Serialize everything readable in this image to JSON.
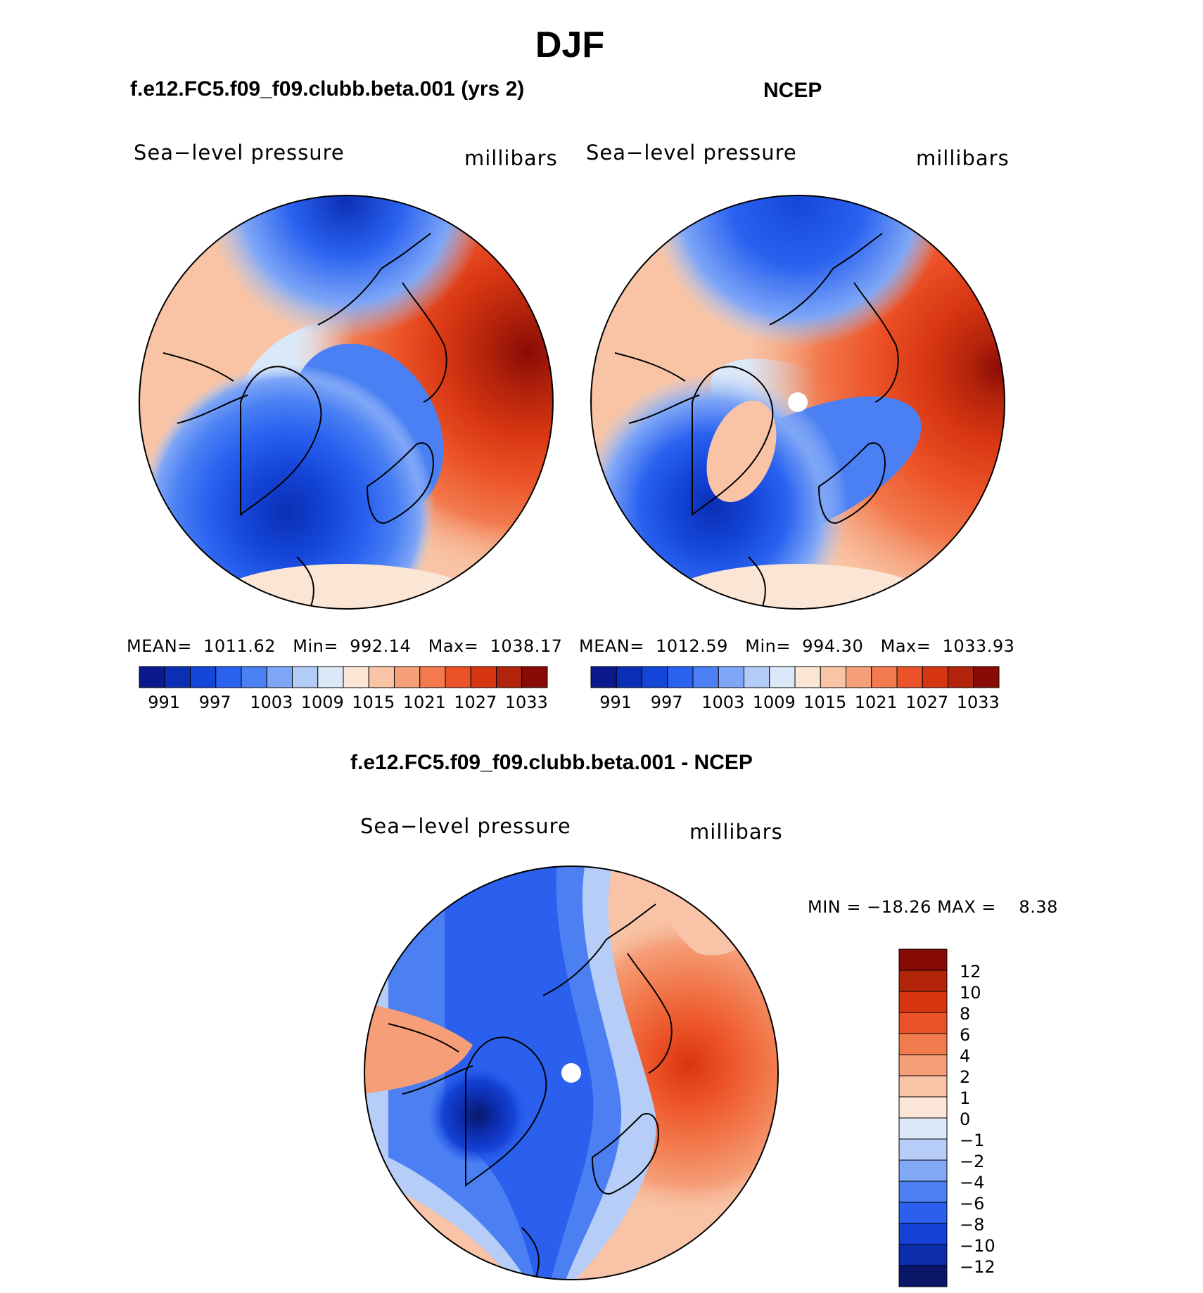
{
  "figure": {
    "season": "DJF",
    "diff_title": "f.e12.FC5.f09_f09.clubb.beta.001 - NCEP"
  },
  "colors": {
    "mean_palette": [
      "#0a1a8c",
      "#0b2fb4",
      "#1446d9",
      "#2a62f0",
      "#4a80f4",
      "#7ea6f7",
      "#b3cbf7",
      "#dbe8f7",
      "#fbe6d6",
      "#f8c4a5",
      "#f5a07a",
      "#f27a4e",
      "#ec5227",
      "#d63512",
      "#b2230b",
      "#8a0b05"
    ],
    "diff_palette": [
      "#0a1668",
      "#0b2cab",
      "#1542d6",
      "#2b60ee",
      "#4c80f2",
      "#82a9f5",
      "#b6cdf7",
      "#dde9f8",
      "#fbe6d8",
      "#f8c3a6",
      "#f59e78",
      "#f27b4e",
      "#ec5227",
      "#d9350f",
      "#b2240a",
      "#860a05"
    ],
    "land_line": "#000000"
  },
  "panels": [
    {
      "id": "model",
      "title": "f.e12.FC5.f09_f09.clubb.beta.001 (yrs 2)",
      "variable": "Sea−level pressure",
      "units": "millibars",
      "stats": {
        "mean_label": "MEAN=",
        "mean": "1011.62",
        "min_label": "Min=",
        "min": "992.14",
        "max_label": "Max=",
        "max": "1038.17"
      }
    },
    {
      "id": "obs",
      "title": "NCEP",
      "variable": "Sea−level pressure",
      "units": "millibars",
      "stats": {
        "mean_label": "MEAN=",
        "mean": "1012.59",
        "min_label": "Min=",
        "min": "994.30",
        "max_label": "Max=",
        "max": "1033.93"
      }
    },
    {
      "id": "diff",
      "title": "f.e12.FC5.f09_f09.clubb.beta.001 - NCEP",
      "variable": "Sea−level pressure",
      "units": "millibars",
      "stats": {
        "min_label": "MIN =",
        "min": "−18.26",
        "max_label": "MAX =",
        "max": "8.38"
      }
    }
  ],
  "chart_data": [
    {
      "type": "heatmap",
      "projection": "north polar stereographic",
      "title": "f.e12.FC5.f09_f09.clubb.beta.001 (yrs 2)",
      "variable": "Sea-level pressure",
      "units": "millibars",
      "mean": 1011.62,
      "min": 992.14,
      "max": 1038.17,
      "colorbar_ticks": [
        "991",
        "997",
        "1003",
        "1009",
        "1015",
        "1021",
        "1027",
        "1033"
      ],
      "colorbar_levels": 16
    },
    {
      "type": "heatmap",
      "projection": "north polar stereographic",
      "title": "NCEP",
      "variable": "Sea-level pressure",
      "units": "millibars",
      "mean": 1012.59,
      "min": 994.3,
      "max": 1033.93,
      "colorbar_ticks": [
        "991",
        "997",
        "1003",
        "1009",
        "1015",
        "1021",
        "1027",
        "1033"
      ],
      "colorbar_levels": 16
    },
    {
      "type": "heatmap",
      "projection": "north polar stereographic",
      "title": "f.e12.FC5.f09_f09.clubb.beta.001 - NCEP",
      "variable": "Sea-level pressure",
      "units": "millibars",
      "min": -18.26,
      "max": 8.38,
      "colorbar_ticks": [
        "12",
        "10",
        "8",
        "6",
        "4",
        "2",
        "1",
        "0",
        "−1",
        "−2",
        "−4",
        "−6",
        "−8",
        "−10",
        "−12"
      ],
      "colorbar_levels": 16
    }
  ]
}
